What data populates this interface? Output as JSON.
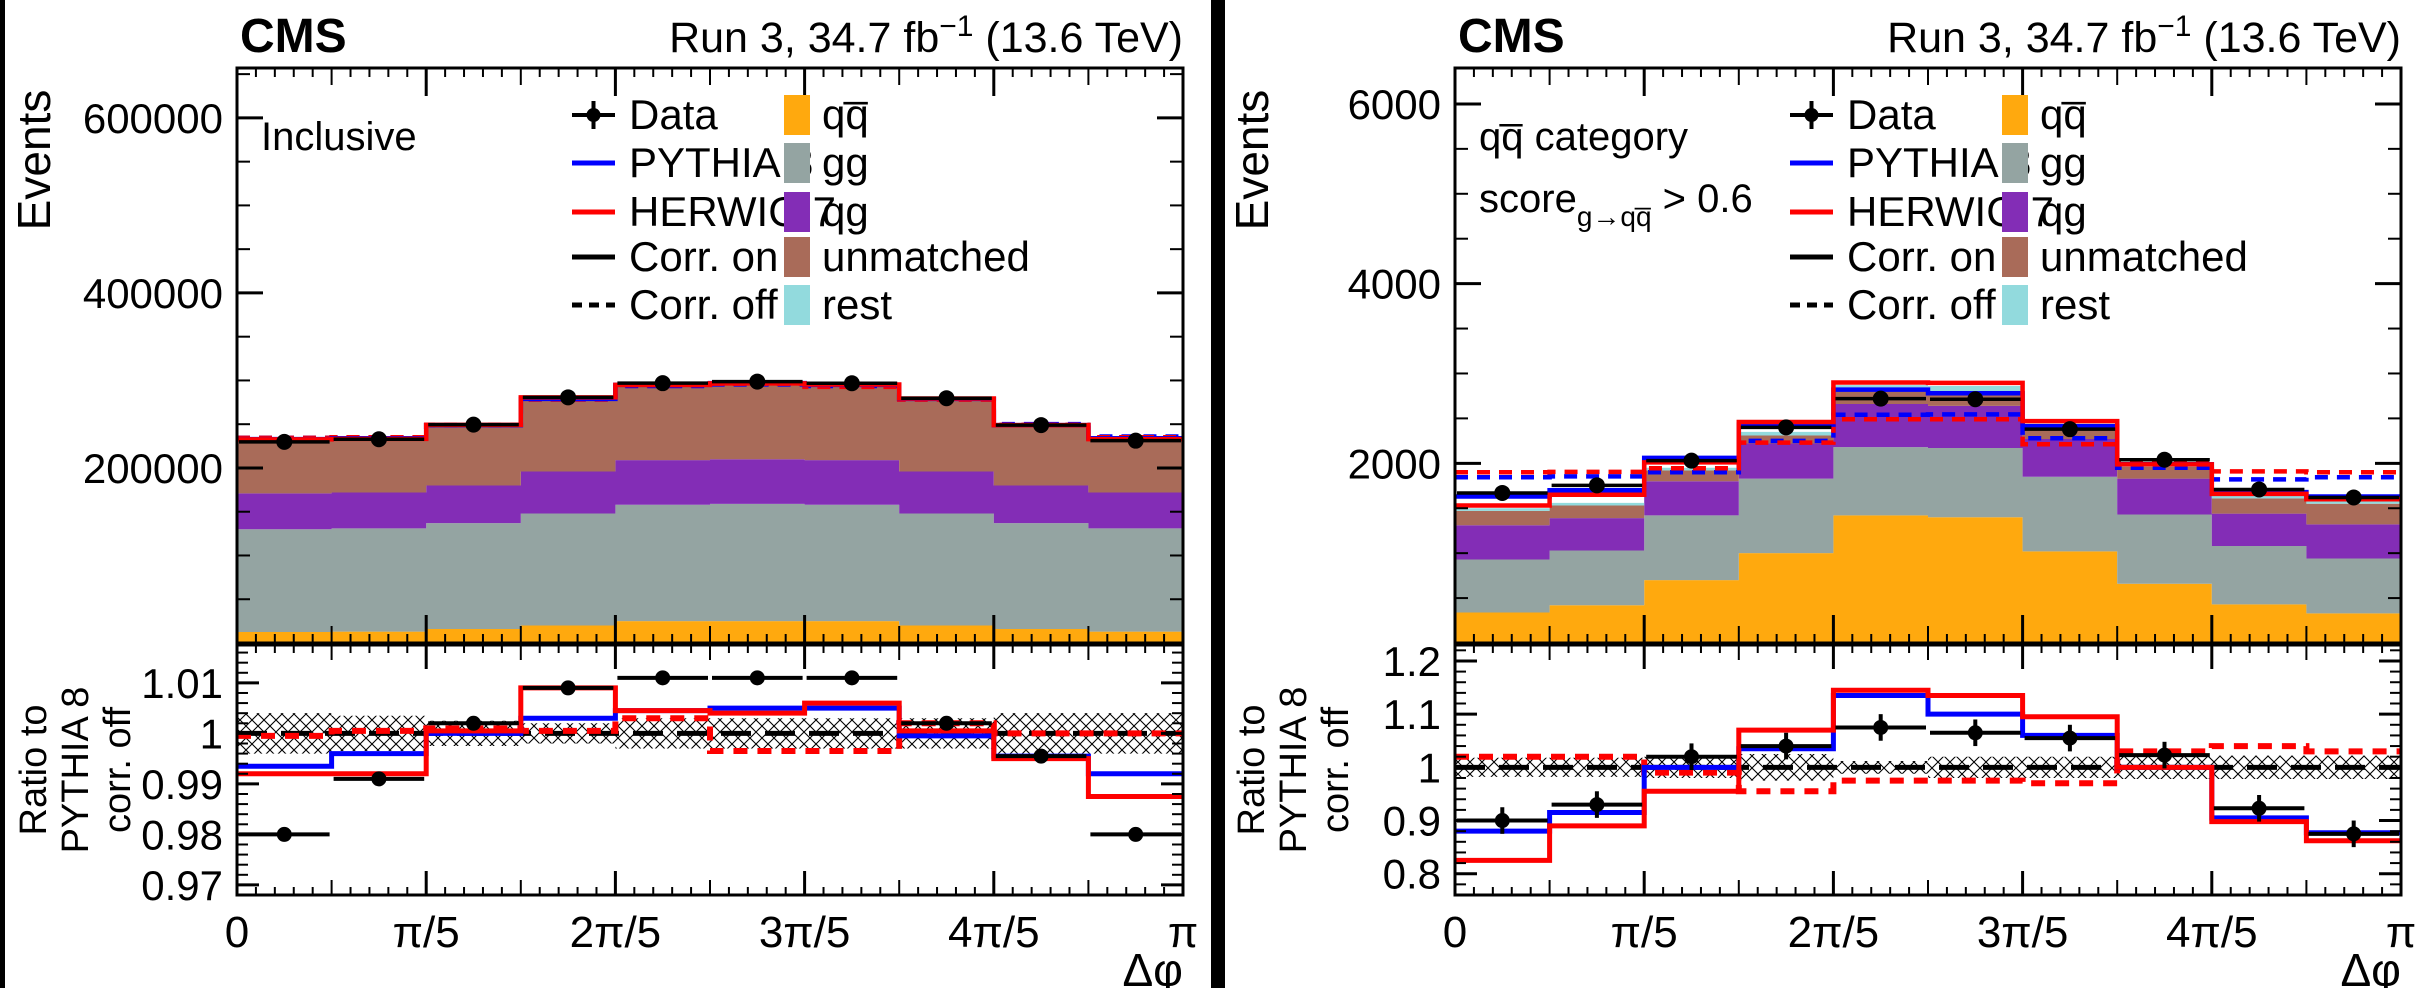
{
  "app": {
    "description": "CMS Run 3 stacked histogram comparison of Delta-phi in inclusive and qqbar categories"
  },
  "colors": {
    "qqbar": "#ffa90e",
    "gg": "#94a4a2",
    "qg": "#832db6",
    "unmatched": "#a96b59",
    "rest": "#92dadd",
    "pythia8": "#0000fe",
    "herwig7": "#fe0000",
    "data": "#000000",
    "frame": "#000000",
    "divider": "#000000"
  },
  "legend": {
    "col1": [
      {
        "label": "Data",
        "type": "data",
        "color": "#000000"
      },
      {
        "label": "PYTHIA 8",
        "type": "line",
        "color": "#0000fe"
      },
      {
        "label": "HERWIG 7",
        "type": "line",
        "color": "#fe0000"
      },
      {
        "label": "Corr. on",
        "type": "line",
        "color": "#000000"
      },
      {
        "label": "Corr. off",
        "type": "dash",
        "color": "#000000"
      }
    ],
    "col2": [
      {
        "label": "qq̅",
        "color": "#ffa90e"
      },
      {
        "label": "gg",
        "color": "#94a4a2"
      },
      {
        "label": "qg",
        "color": "#832db6"
      },
      {
        "label": "unmatched",
        "color": "#a96b59"
      },
      {
        "label": "rest",
        "color": "#92dadd"
      }
    ]
  },
  "chart_data": {
    "type": "bar",
    "subtype": "stacked-step-histogram-with-ratio",
    "x": {
      "unit": "rad",
      "min": 0,
      "max": 3.14159,
      "nbins": 10,
      "ticks": [
        {
          "pos": 0,
          "label": "0"
        },
        {
          "pos": 2,
          "label": "π/5"
        },
        {
          "pos": 4,
          "label": "2π/5"
        },
        {
          "pos": 6,
          "label": "3π/5"
        },
        {
          "pos": 8,
          "label": "4π/5"
        },
        {
          "pos": 10,
          "label": "π"
        }
      ],
      "xlabel": "Δφ"
    },
    "panels": [
      {
        "name": "inclusive",
        "cms": "CMS",
        "lumi_pre": "Run 3, 34.7 fb",
        "lumi_sup": "−1",
        "lumi_post": " (13.6 TeV)",
        "events_label": "Events",
        "ratio_label_lines": [
          "Ratio to",
          "PYTHIA 8",
          "corr. off"
        ],
        "annotation_line1": "Inclusive",
        "annotation_line2": null,
        "ymax": 657000,
        "yminor": 50000,
        "yticks": [
          {
            "v": 200000,
            "label": "200000"
          },
          {
            "v": 400000,
            "label": "400000"
          },
          {
            "v": 600000,
            "label": "600000"
          }
        ],
        "stack": [
          {
            "key": "qqbar",
            "label": "qq̅",
            "color": "#ffa90e",
            "values": [
              12500,
              13000,
              16000,
              20000,
              25000,
              25000,
              25000,
              20000,
              16000,
              13000
            ]
          },
          {
            "key": "gg",
            "label": "gg",
            "color": "#94a4a2",
            "values": [
              117500,
              118000,
              121000,
              128000,
              133000,
              134000,
              133000,
              128000,
              121000,
              118000
            ]
          },
          {
            "key": "qg",
            "label": "qg",
            "color": "#832db6",
            "values": [
              41000,
              41000,
              43000,
              48000,
              51000,
              51000,
              51000,
              48000,
              43000,
              41000
            ]
          },
          {
            "key": "unmatched",
            "label": "unmatched",
            "color": "#a96b59",
            "values": [
              61000,
              61000,
              68000,
              82000,
              85000,
              86000,
              85000,
              82000,
              68000,
              61000
            ]
          },
          {
            "key": "rest",
            "label": "rest",
            "color": "#92dadd",
            "values": [
              1000,
              1000,
              1000,
              1000,
              1000,
              1000,
              1000,
              1000,
              1000,
              1000
            ]
          }
        ],
        "lines": {
          "pythia8_corr_on": [
            233000,
            234000,
            249000,
            279000,
            295000,
            297000,
            295000,
            279000,
            249000,
            234000
          ],
          "herwig7_corr_on": [
            232600,
            233200,
            249200,
            280700,
            295000,
            296700,
            295300,
            279400,
            248900,
            232900
          ],
          "pythia8_corr_off": [
            234500,
            234900,
            249000,
            278200,
            293700,
            295500,
            293600,
            279100,
            250100,
            235900
          ],
          "herwig7_corr_off": [
            234400,
            235100,
            249300,
            278300,
            294600,
            296400,
            292600,
            278100,
            249200,
            235100
          ]
        },
        "data": {
          "y": [
            229800,
            232800,
            249500,
            280700,
            296900,
            298700,
            296800,
            279700,
            249000,
            231200
          ],
          "err": 600
        },
        "ratio": {
          "ymin": 0.968,
          "ymax": 1.0175,
          "minor": 0.002,
          "ticks": [
            {
              "v": 0.97,
              "label": "0.97"
            },
            {
              "v": 0.98,
              "label": "0.98"
            },
            {
              "v": 0.99,
              "label": "0.99"
            },
            {
              "v": 1.0,
              "label": "1"
            },
            {
              "v": 1.01,
              "label": "1.01"
            }
          ],
          "band_halfwidth": [
            0.004,
            0.0035,
            0.0025,
            0.002,
            0.003,
            0.003,
            0.003,
            0.003,
            0.004,
            0.004
          ],
          "pythia8": [
            0.9935,
            0.996,
            1.0,
            1.003,
            1.0045,
            1.005,
            1.005,
            0.9995,
            0.9955,
            0.992
          ],
          "herwig7": [
            0.992,
            0.992,
            1.0005,
            1.009,
            1.0045,
            1.004,
            1.006,
            1.0005,
            0.995,
            0.9875
          ],
          "herwig7_off": [
            0.9995,
            1.0005,
            1.001,
            1.0005,
            1.003,
            0.9965,
            0.9965,
            1.002,
            1.0,
            1.0
          ],
          "data": [
            0.98,
            0.991,
            1.002,
            1.009,
            1.011,
            1.011,
            1.011,
            1.002,
            0.9955,
            0.98
          ],
          "data_err": 0.0013
        }
      },
      {
        "name": "qqbar-category",
        "cms": "CMS",
        "lumi_pre": "Run 3, 34.7 fb",
        "lumi_sup": "−1",
        "lumi_post": " (13.6 TeV)",
        "events_label": "Events",
        "ratio_label_lines": [
          "Ratio to",
          "PYTHIA 8",
          "corr. off"
        ],
        "annotation_line1": "qq̅ category",
        "annotation_line2": {
          "pre": "score",
          "sub": "g→qq̅",
          "post": " > 0.6"
        },
        "ymax": 6400,
        "yminor": 500,
        "yticks": [
          {
            "v": 2000,
            "label": "2000"
          },
          {
            "v": 4000,
            "label": "4000"
          },
          {
            "v": 6000,
            "label": "6000"
          }
        ],
        "stack": [
          {
            "key": "qqbar",
            "label": "qq̅",
            "color": "#ffa90e",
            "values": [
              340,
              420,
              700,
              1000,
              1420,
              1400,
              1020,
              660,
              430,
              330
            ]
          },
          {
            "key": "gg",
            "label": "gg",
            "color": "#94a4a2",
            "values": [
              590,
              610,
              720,
              830,
              760,
              770,
              830,
              770,
              650,
              610
            ]
          },
          {
            "key": "qg",
            "label": "qg",
            "color": "#832db6",
            "values": [
              380,
              360,
              380,
              390,
              480,
              470,
              420,
              400,
              360,
              380
            ]
          },
          {
            "key": "unmatched",
            "label": "unmatched",
            "color": "#a96b59",
            "values": [
              160,
              140,
              120,
              90,
              140,
              150,
              120,
              130,
              170,
              230
            ]
          },
          {
            "key": "rest",
            "label": "rest",
            "color": "#92dadd",
            "values": [
              30,
              30,
              30,
              40,
              70,
              70,
              50,
              40,
              30,
              30
            ]
          }
        ],
        "lines": {
          "pythia8_corr_on": [
            1630,
            1700,
            2060,
            2430,
            2820,
            2780,
            2413,
            1990,
            1680,
            1630
          ],
          "herwig7_corr_on": [
            1530,
            1650,
            2010,
            2460,
            2900,
            2895,
            2469,
            1988,
            1660,
            1600
          ],
          "pythia8_corr_off": [
            1845,
            1855,
            1900,
            2250,
            2540,
            2545,
            2279,
            1950,
            1821,
            1845
          ],
          "herwig7_corr_off": [
            1900,
            1905,
            1945,
            2230,
            2490,
            2490,
            2212,
            2022,
            1910,
            1900
          ]
        },
        "data": {
          "y": [
            1670,
            1755,
            2030,
            2400,
            2720,
            2713,
            2380,
            2040,
            1709,
            1620
          ],
          "err": 45
        },
        "ratio": {
          "ymin": 0.76,
          "ymax": 1.23,
          "minor": 0.02,
          "ticks": [
            {
              "v": 0.8,
              "label": "0.8"
            },
            {
              "v": 0.9,
              "label": "0.9"
            },
            {
              "v": 1.0,
              "label": "1"
            },
            {
              "v": 1.1,
              "label": "1.1"
            },
            {
              "v": 1.2,
              "label": "1.2"
            }
          ],
          "band_halfwidth": [
            0.018,
            0.018,
            0.02,
            0.025,
            0.012,
            0.02,
            0.02,
            0.022,
            0.022,
            0.022
          ],
          "pythia8": [
            0.88,
            0.915,
            1.0,
            1.035,
            1.135,
            1.1,
            1.06,
            1.0,
            0.905,
            0.877
          ],
          "herwig7": [
            0.825,
            0.89,
            0.955,
            1.07,
            1.145,
            1.135,
            1.095,
            1.0,
            0.898,
            0.862
          ],
          "herwig7_off": [
            1.02,
            1.02,
            0.99,
            0.955,
            0.975,
            0.975,
            0.97,
            1.03,
            1.04,
            1.03
          ],
          "data": [
            0.9,
            0.93,
            1.02,
            1.04,
            1.075,
            1.065,
            1.055,
            1.023,
            0.923,
            0.875
          ],
          "data_err": 0.025
        }
      }
    ]
  }
}
